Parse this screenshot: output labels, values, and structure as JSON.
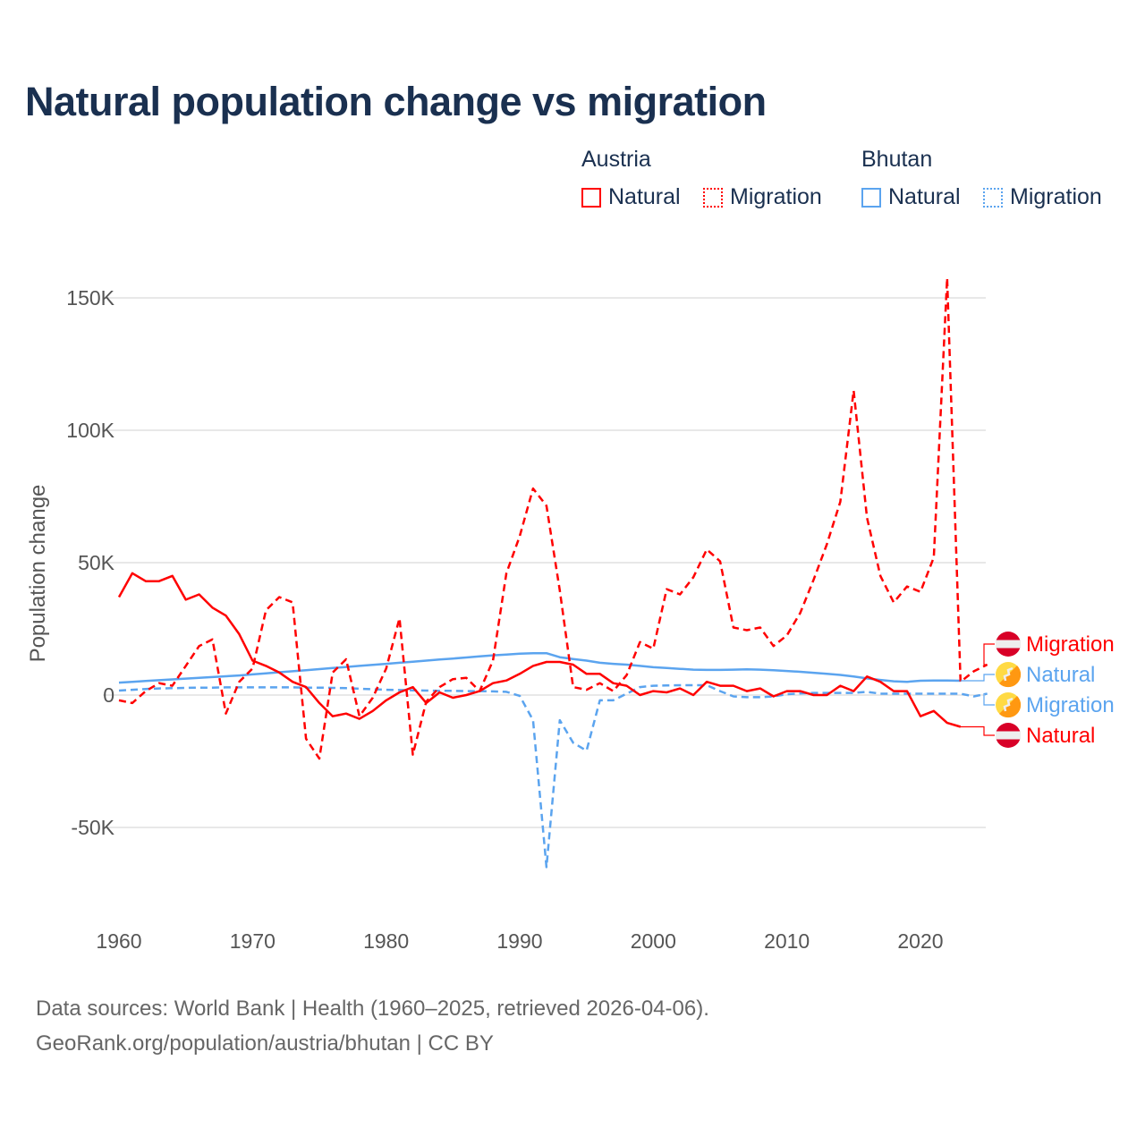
{
  "title": "Natural population change vs migration",
  "legend": {
    "groups": [
      {
        "name": "Austria",
        "color": "#ff0000",
        "items": [
          "Natural",
          "Migration"
        ]
      },
      {
        "name": "Bhutan",
        "color": "#5ba4ef",
        "items": [
          "Natural",
          "Migration"
        ]
      }
    ]
  },
  "source": {
    "line1": "Data sources: World Bank | Health (1960–2025, retrieved 2026-04-06).",
    "line2": "GeoRank.org/population/austria/bhutan | CC BY"
  },
  "chart_data": {
    "type": "line",
    "title": "Natural population change vs migration",
    "xlabel": "",
    "ylabel": "Population change",
    "xlim": [
      1960,
      2025
    ],
    "ylim": [
      -80000,
      165000
    ],
    "x_ticks": [
      1960,
      1970,
      1980,
      1990,
      2000,
      2010,
      2020
    ],
    "x_tick_labels": [
      "1960",
      "1970",
      "1980",
      "1990",
      "2000",
      "2010",
      "2020"
    ],
    "y_ticks": [
      -50000,
      0,
      50000,
      100000,
      150000
    ],
    "y_tick_labels": [
      "-50K",
      "0",
      "50K",
      "100K",
      "150K"
    ],
    "grid": true,
    "legend_position": "top-right",
    "series": [
      {
        "name": "Austria Natural",
        "label": "Natural",
        "color": "#ff0000",
        "dash": false,
        "start_year": 1960,
        "values": [
          37,
          46,
          43,
          43,
          45,
          36,
          38,
          33,
          30,
          23,
          13,
          11,
          8.5,
          5,
          3,
          -3,
          -8,
          -7,
          -9,
          -6,
          -2,
          1,
          3,
          -3,
          1,
          -1,
          0,
          1.5,
          4.5,
          5.5,
          8,
          11,
          12.5,
          12.5,
          11.5,
          8,
          8,
          4.5,
          3.5,
          0,
          1.5,
          1,
          2.5,
          0,
          5,
          3.5,
          3.5,
          1.5,
          2.5,
          -0.5,
          1.5,
          1.5,
          0,
          0,
          3.5,
          1.5,
          7,
          5,
          1.5,
          1.5,
          -8,
          -6,
          -10.5,
          -12
        ]
      },
      {
        "name": "Austria Migration",
        "label": "Migration",
        "color": "#ff0000",
        "dash": true,
        "start_year": 1960,
        "values": [
          -2,
          -3,
          1.5,
          4.5,
          3.5,
          11,
          18.5,
          21,
          -7,
          5,
          10,
          32,
          37,
          35,
          -16.5,
          -24,
          8.5,
          13.5,
          -8,
          -1,
          10,
          29,
          -22.5,
          -2.5,
          3,
          6,
          6.5,
          1.5,
          13,
          46,
          60,
          78,
          71.5,
          39.5,
          3,
          2,
          4.5,
          1.5,
          7.5,
          20,
          17.5,
          40,
          38,
          44.5,
          55,
          50.5,
          25.5,
          24.5,
          25.5,
          18.5,
          22.5,
          31,
          43.5,
          57,
          73,
          115,
          67,
          45,
          35,
          41,
          39,
          52,
          157.5,
          5,
          9,
          11.5
        ]
      },
      {
        "name": "Bhutan Natural",
        "label": "Natural",
        "color": "#5ba4ef",
        "dash": false,
        "start_year": 1960,
        "values": [
          4.7,
          5,
          5.3,
          5.6,
          5.9,
          6.2,
          6.5,
          6.8,
          7.1,
          7.4,
          7.8,
          8.2,
          8.6,
          9,
          9.4,
          9.8,
          10.2,
          10.6,
          11,
          11.4,
          11.8,
          12.2,
          12.6,
          13,
          13.4,
          13.8,
          14.2,
          14.6,
          15,
          15.3,
          15.6,
          15.8,
          15.8,
          14.3,
          13.6,
          13,
          12.2,
          11.8,
          11.5,
          11,
          10.5,
          10.2,
          9.9,
          9.6,
          9.5,
          9.5,
          9.6,
          9.7,
          9.6,
          9.4,
          9.1,
          8.8,
          8.4,
          8,
          7.6,
          7,
          6.3,
          5.7,
          5.2,
          5,
          5.4,
          5.5,
          5.5,
          5.4
        ]
      },
      {
        "name": "Bhutan Migration",
        "label": "Migration",
        "color": "#5ba4ef",
        "dash": true,
        "start_year": 1960,
        "values": [
          1.7,
          2,
          2.3,
          2.5,
          2.6,
          2.7,
          2.8,
          2.8,
          2.9,
          2.9,
          2.9,
          2.9,
          2.9,
          2.9,
          2.8,
          2.8,
          2.7,
          2.6,
          2.4,
          2.2,
          2,
          1.9,
          1.8,
          1.7,
          1.6,
          1.6,
          1.5,
          1.5,
          1.4,
          1.2,
          -0.3,
          -9.5,
          -65,
          -9.5,
          -18,
          -21,
          -2,
          -2,
          0.5,
          3,
          3.5,
          3.6,
          3.7,
          3.7,
          3.7,
          1.5,
          -0.5,
          -0.8,
          -0.8,
          -0.5,
          0.3,
          0.6,
          0.8,
          0.8,
          0.8,
          0.8,
          1.2,
          0.5,
          0.5,
          0.5,
          0.5,
          0.5,
          0.5,
          0.5,
          -0.5,
          0.5
        ]
      }
    ],
    "end_labels": [
      {
        "text": "Migration",
        "country": "Austria",
        "color": "#ff0000"
      },
      {
        "text": "Natural",
        "country": "Bhutan",
        "color": "#5ba4ef"
      },
      {
        "text": "Migration",
        "country": "Bhutan",
        "color": "#5ba4ef"
      },
      {
        "text": "Natural",
        "country": "Austria",
        "color": "#ff0000"
      }
    ],
    "units": "thousands"
  }
}
